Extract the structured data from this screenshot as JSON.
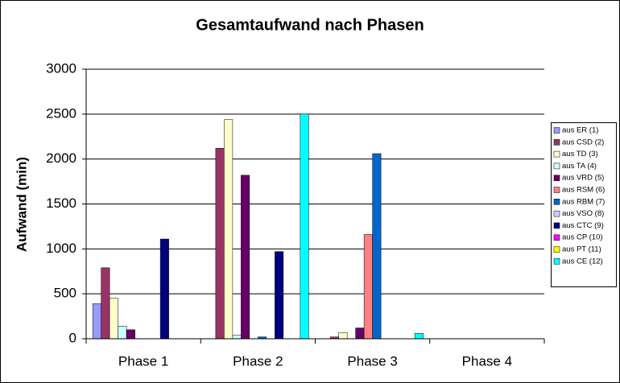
{
  "chart_data": {
    "type": "bar",
    "title": "Gesamtaufwand nach Phasen",
    "y_label": "Aufwand (min)",
    "categories": [
      "Phase 1",
      "Phase 2",
      "Phase 3",
      "Phase 4"
    ],
    "series": [
      {
        "name": "aus ER (1)",
        "color": "#9999ff",
        "values": [
          390,
          0,
          0,
          0
        ]
      },
      {
        "name": "aus CSD (2)",
        "color": "#993366",
        "values": [
          790,
          2120,
          20,
          0
        ]
      },
      {
        "name": "aus TD (3)",
        "color": "#ffffcc",
        "values": [
          450,
          2440,
          70,
          0
        ]
      },
      {
        "name": "aus TA (4)",
        "color": "#ccffff",
        "values": [
          140,
          40,
          0,
          0
        ]
      },
      {
        "name": "aus VRD (5)",
        "color": "#660066",
        "values": [
          100,
          1820,
          120,
          0
        ]
      },
      {
        "name": "aus RSM (6)",
        "color": "#ff8080",
        "values": [
          0,
          0,
          1160,
          0
        ]
      },
      {
        "name": "aus RBM (7)",
        "color": "#0066cc",
        "values": [
          0,
          20,
          2060,
          0
        ]
      },
      {
        "name": "aus VSO (8)",
        "color": "#ccccff",
        "values": [
          0,
          0,
          0,
          0
        ]
      },
      {
        "name": "aus CTC (9)",
        "color": "#000080",
        "values": [
          1110,
          970,
          0,
          0
        ]
      },
      {
        "name": "aus CP (10)",
        "color": "#ff00ff",
        "values": [
          0,
          0,
          0,
          0
        ]
      },
      {
        "name": "aus PT (11)",
        "color": "#ffff00",
        "values": [
          0,
          0,
          0,
          0
        ]
      },
      {
        "name": "aus CE (12)",
        "color": "#00ffff",
        "values": [
          0,
          2500,
          60,
          0
        ]
      }
    ],
    "ylim": [
      0,
      3000
    ],
    "yticks": [
      0,
      500,
      1000,
      1500,
      2000,
      2500,
      3000
    ],
    "grid": true,
    "legend": "right"
  }
}
